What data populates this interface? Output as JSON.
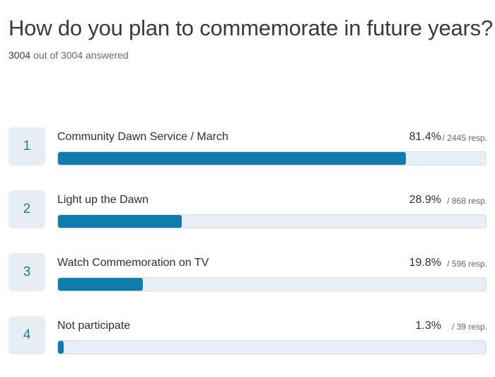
{
  "title": "How do you plan to commemorate in future years?",
  "answered": {
    "count": "3004",
    "middle": " out of ",
    "total": "3004",
    "suffix": " answered"
  },
  "colors": {
    "bar_fill": "#0f7dab",
    "bar_track": "#e8eef5",
    "rank_bg": "#e6edf3",
    "rank_text": "#1a7fa8"
  },
  "chart_data": {
    "type": "bar",
    "title": "How do you plan to commemorate in future years?",
    "categories": [
      "Community Dawn Service / March",
      "Light up the Dawn",
      "Watch Commemoration on TV",
      "Not participate"
    ],
    "values": [
      81.4,
      28.9,
      19.8,
      1.3
    ],
    "responses": [
      2445,
      868,
      596,
      39
    ],
    "ylim": [
      0,
      100
    ]
  },
  "rows": [
    {
      "rank": "1",
      "label": "Community Dawn Service / March",
      "percent_text": "81.4%",
      "resp_text": "/ 2445 resp."
    },
    {
      "rank": "2",
      "label": "Light up the Dawn",
      "percent_text": "28.9%",
      "resp_text": "/ 868 resp."
    },
    {
      "rank": "3",
      "label": "Watch Commemoration on TV",
      "percent_text": "19.8%",
      "resp_text": "/ 596 resp."
    },
    {
      "rank": "4",
      "label": "Not participate",
      "percent_text": "1.3%",
      "resp_text": "/ 39 resp."
    }
  ]
}
